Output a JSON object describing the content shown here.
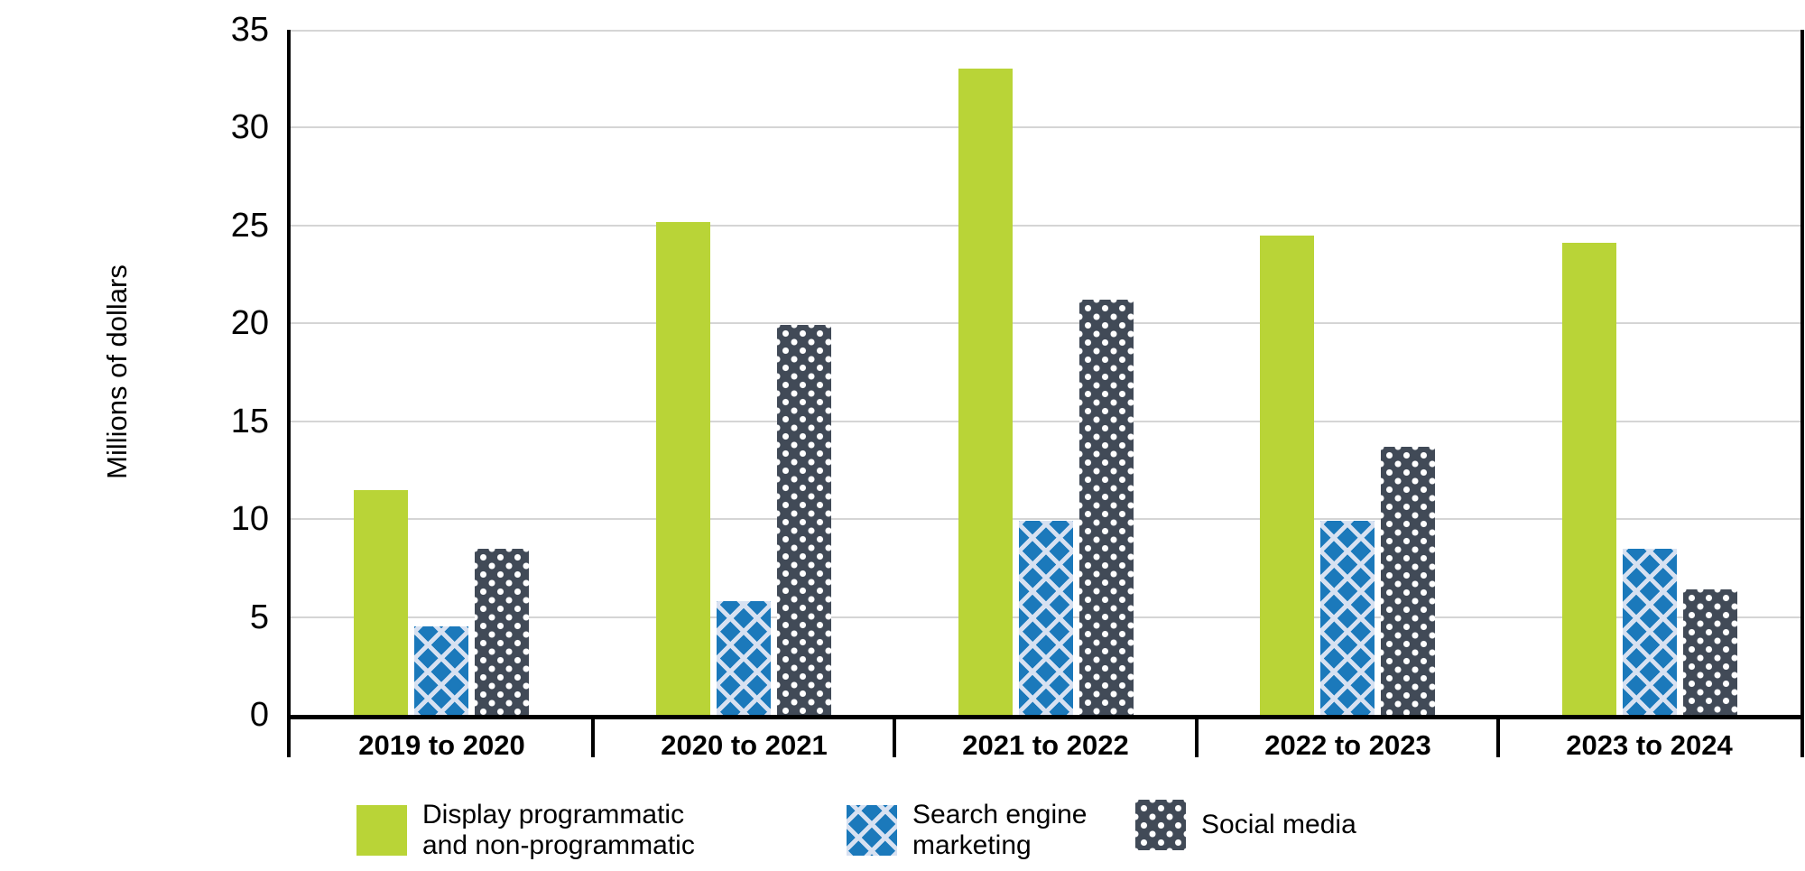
{
  "chart_data": {
    "type": "bar",
    "title": "",
    "xlabel": "",
    "ylabel": "Millions of dollars",
    "ylim": [
      0,
      35
    ],
    "yticks": [
      0,
      5,
      10,
      15,
      20,
      25,
      30,
      35
    ],
    "grid": true,
    "legend_position": "bottom",
    "categories": [
      "2019 to 2020",
      "2020 to 2021",
      "2021 to 2022",
      "2022 to 2023",
      "2023 to 2024"
    ],
    "series": [
      {
        "name": "Display programmatic and non-programmatic",
        "legend_lines": [
          "Display programmatic",
          "and non-programmatic"
        ],
        "pattern": "solid",
        "color": "#b9d437",
        "values": [
          11.5,
          25.2,
          33.0,
          24.5,
          24.1
        ]
      },
      {
        "name": "Search engine marketing",
        "legend_lines": [
          "Search engine",
          "marketing"
        ],
        "pattern": "crosshatch",
        "color": "#1b79bb",
        "pattern_color": "#d7e1f1",
        "values": [
          4.5,
          5.8,
          9.9,
          9.9,
          8.5
        ]
      },
      {
        "name": "Social media",
        "legend_lines": [
          "Social media"
        ],
        "pattern": "dots",
        "color": "#414a57",
        "pattern_color": "#ffffff",
        "values": [
          8.5,
          19.9,
          21.2,
          13.7,
          6.4
        ]
      }
    ]
  },
  "style": {
    "axis_color": "#000000",
    "grid_color": "#d5d5d5",
    "text_color": "#000000"
  }
}
